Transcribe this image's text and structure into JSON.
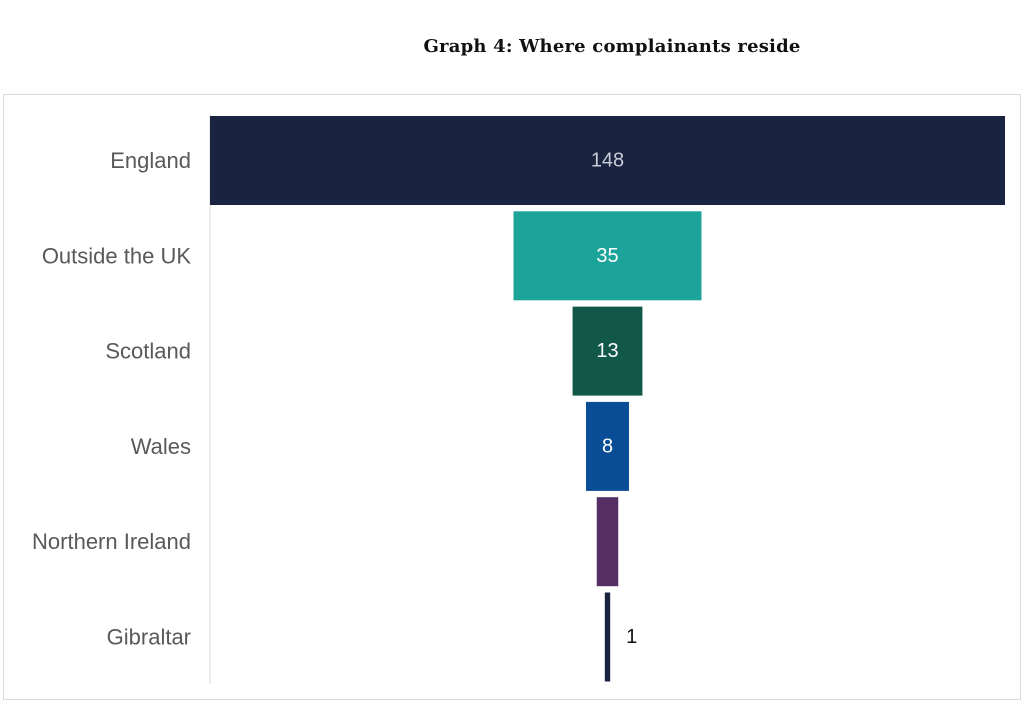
{
  "chart_data": {
    "type": "bar",
    "subtype": "funnel",
    "title": "Graph 4: Where complainants reside",
    "xlabel": "",
    "ylabel": "",
    "categories": [
      "England",
      "Outside the UK",
      "Scotland",
      "Wales",
      "Northern Ireland",
      "Gibraltar"
    ],
    "values": [
      148,
      35,
      13,
      8,
      4,
      1
    ],
    "colors": [
      "#1a2440",
      "#1ca39a",
      "#115849",
      "#084d96",
      "#552e63",
      "#1a2440"
    ],
    "label_colors": [
      "#c8ccd6",
      "#ffffff",
      "#ffffff",
      "#ffffff",
      "#ffffff",
      "#111111"
    ],
    "grid": false,
    "legend": "none"
  }
}
